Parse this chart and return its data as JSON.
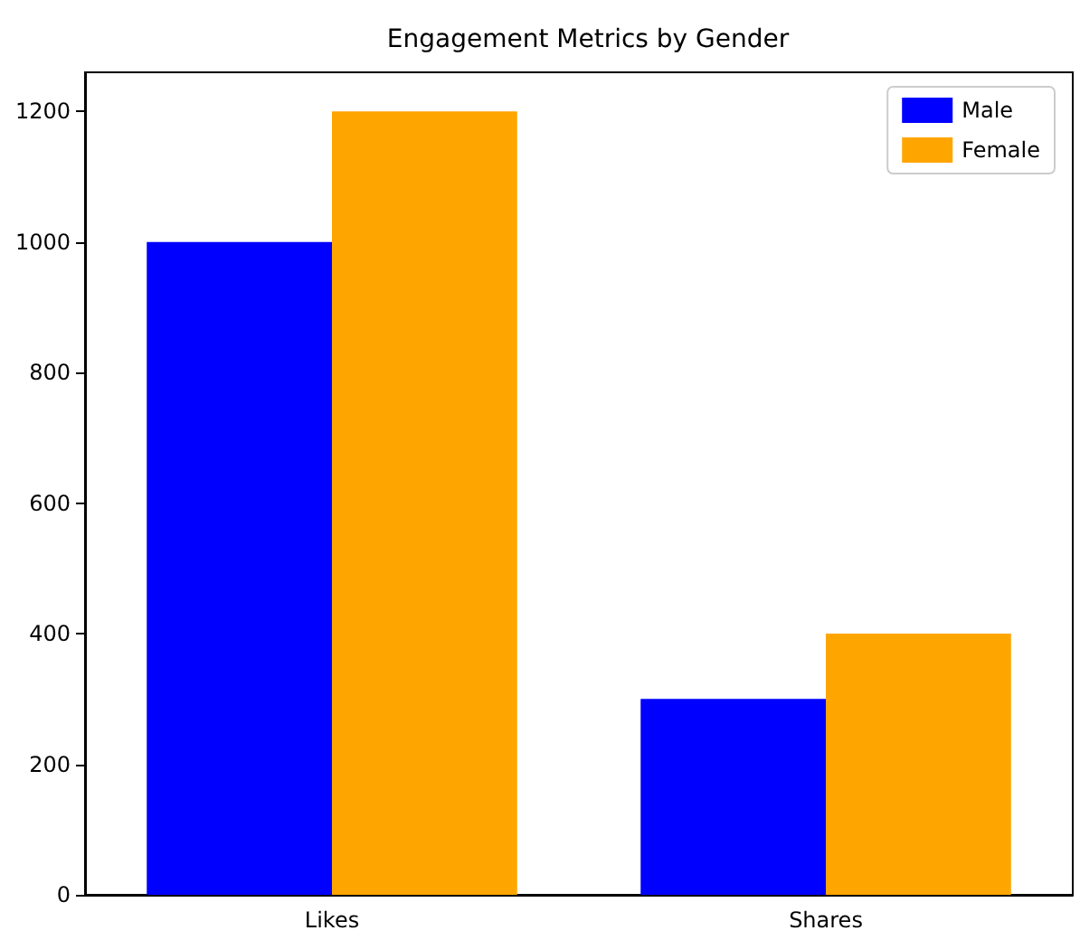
{
  "chart_data": {
    "type": "bar",
    "title": "Engagement Metrics by Gender",
    "categories": [
      "Likes",
      "Shares"
    ],
    "series": [
      {
        "name": "Male",
        "color": "#0000ff",
        "values": [
          1000,
          300
        ]
      },
      {
        "name": "Female",
        "color": "#ffa500",
        "values": [
          1200,
          400
        ]
      }
    ],
    "ylim": [
      0,
      1260
    ],
    "yticks": [
      0,
      200,
      400,
      600,
      800,
      1000,
      1200
    ],
    "legend": "top right",
    "grid": false
  }
}
